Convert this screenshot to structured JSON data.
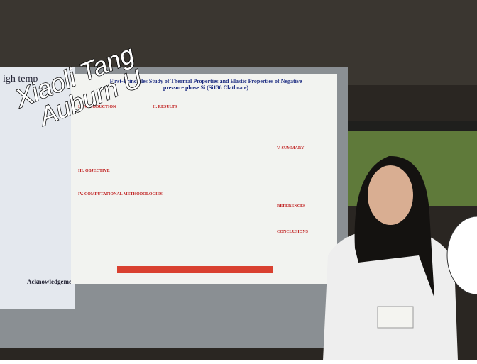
{
  "overlay": {
    "lines": [
      "Xiaoli Tang",
      "Auburn U"
    ]
  },
  "poster": {
    "title": "First-Principles Study of Thermal Properties and Elastic Properties of Negative pressure phase Si (Si136 Clathrate)",
    "headings": [
      "I. INTRODUCTION",
      "II. RESULTS",
      "III. OBJECTIVE",
      "IV. COMPUTATIONAL METHODOLOGIES",
      "V. SUMMARY",
      "REFERENCES",
      "CONCLUSIONS"
    ]
  },
  "left_poster": {
    "title": "igh temp",
    "footer": "Acknowledgement"
  }
}
